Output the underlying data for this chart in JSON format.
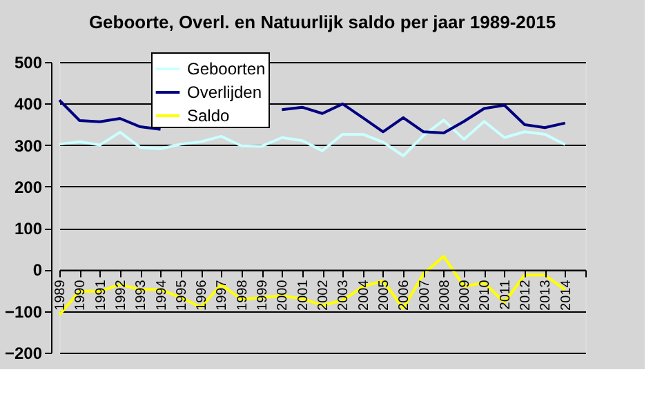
{
  "chart_data": {
    "type": "line",
    "title": "Geboorte, Overl. en Natuurlijk saldo per jaar 1989-2015",
    "categories": [
      "1989",
      "1990",
      "1991",
      "1992",
      "1993",
      "1994",
      "1995",
      "1996",
      "1997",
      "1998",
      "1999",
      "2000",
      "2001",
      "2002",
      "2003",
      "2004",
      "2005",
      "2006",
      "2007",
      "2008",
      "2009",
      "2010",
      "2011",
      "2012",
      "2013",
      "2014",
      null
    ],
    "series": [
      {
        "name": "Geboorten",
        "color": "#ccffff",
        "values": [
          302,
          308,
          300,
          331,
          294,
          291,
          302,
          308,
          321,
          298,
          297,
          318,
          311,
          286,
          326,
          326,
          307,
          274,
          323,
          360,
          314,
          357,
          318,
          332,
          326,
          301,
          null
        ]
      },
      {
        "name": "Overlijden",
        "color": "#000080",
        "values": [
          408,
          359,
          356,
          364,
          344,
          338,
          null,
          null,
          null,
          null,
          null,
          385,
          391,
          376,
          399,
          366,
          332,
          366,
          332,
          329,
          357,
          388,
          396,
          349,
          342,
          353,
          null
        ]
      },
      {
        "name": "Saldo",
        "color": "#ffff00",
        "values": [
          -109,
          -52,
          -52,
          -36,
          -48,
          -48,
          -67,
          -91,
          -36,
          -72,
          -67,
          -63,
          -70,
          -86,
          -74,
          -41,
          -27,
          -93,
          -10,
          32,
          -40,
          -32,
          -79,
          -13,
          -13,
          -49,
          null
        ]
      }
    ],
    "ylim": [
      -200,
      500
    ],
    "yticks": [
      -200,
      -100,
      0,
      100,
      200,
      300,
      400,
      500
    ],
    "grid": "y",
    "legend": "top"
  }
}
